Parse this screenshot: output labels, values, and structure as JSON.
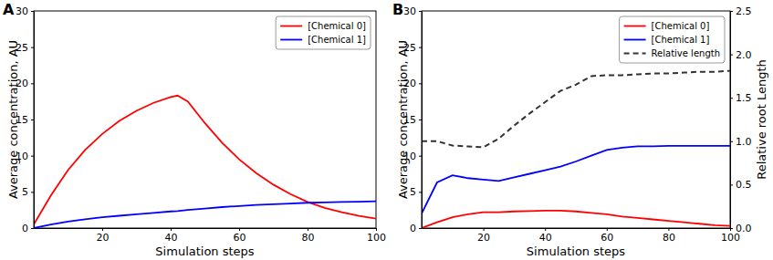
{
  "chart_data": [
    {
      "type": "line",
      "title": "A",
      "x_label": "Simulation steps",
      "y_label": "Average concentration, AU",
      "x": [
        0,
        5,
        10,
        15,
        20,
        25,
        30,
        35,
        40,
        42,
        45,
        50,
        55,
        60,
        65,
        70,
        75,
        80,
        85,
        90,
        95,
        100
      ],
      "series": [
        {
          "name": "[Chemical 0]",
          "color": "#ff0000",
          "values": [
            0.5,
            4.5,
            8,
            10.8,
            13,
            14.8,
            16.2,
            17.3,
            18.1,
            18.3,
            17.5,
            14.5,
            11.8,
            9.5,
            7.6,
            6,
            4.7,
            3.6,
            2.8,
            2.2,
            1.7,
            1.3
          ]
        },
        {
          "name": "[Chemical 1]",
          "color": "#0000ff",
          "values": [
            0,
            0.5,
            0.9,
            1.2,
            1.5,
            1.7,
            1.9,
            2.1,
            2.3,
            2.35,
            2.5,
            2.7,
            2.9,
            3.05,
            3.2,
            3.3,
            3.4,
            3.5,
            3.55,
            3.6,
            3.65,
            3.7
          ]
        }
      ],
      "xlim": [
        0,
        100
      ],
      "xticks": [
        20,
        40,
        60,
        80,
        100
      ],
      "ylim": [
        0,
        30
      ],
      "yticks": [
        0,
        5,
        10,
        15,
        20,
        25,
        30
      ],
      "grid": false,
      "legend": "upper right"
    },
    {
      "type": "line",
      "title": "B",
      "x_label": "Simulation steps",
      "y_label": "Average concentration, AU",
      "y2_label": "Relative root Length",
      "x": [
        0,
        5,
        10,
        15,
        20,
        25,
        30,
        35,
        40,
        45,
        50,
        55,
        60,
        65,
        70,
        75,
        80,
        85,
        90,
        95,
        100
      ],
      "series": [
        {
          "name": "[Chemical 0]",
          "color": "#ff0000",
          "values": [
            0,
            0.8,
            1.5,
            1.9,
            2.2,
            2.2,
            2.3,
            2.35,
            2.4,
            2.4,
            2.3,
            2.1,
            1.9,
            1.6,
            1.4,
            1.2,
            1.0,
            0.8,
            0.6,
            0.4,
            0.3
          ]
        },
        {
          "name": "[Chemical 1]",
          "color": "#0000ff",
          "values": [
            2,
            6.3,
            7.3,
            6.9,
            6.7,
            6.5,
            7,
            7.5,
            8,
            8.5,
            9.2,
            10,
            10.8,
            11.1,
            11.3,
            11.3,
            11.35,
            11.35,
            11.35,
            11.35,
            11.35
          ]
        },
        {
          "name": "Relative length",
          "color": "#333333",
          "line_style": "dashed",
          "axis": "y2",
          "values": [
            1.0,
            1.0,
            0.95,
            0.94,
            0.93,
            1.03,
            1.18,
            1.32,
            1.45,
            1.58,
            1.65,
            1.75,
            1.76,
            1.76,
            1.77,
            1.78,
            1.78,
            1.79,
            1.8,
            1.8,
            1.81
          ]
        }
      ],
      "xlim": [
        0,
        100
      ],
      "xticks": [
        20,
        40,
        60,
        80,
        100
      ],
      "ylim": [
        0,
        30
      ],
      "yticks": [
        0,
        5,
        10,
        15,
        20,
        25,
        30
      ],
      "y2lim": [
        0,
        2.5
      ],
      "y2ticks": [
        {
          "value": 0,
          "label": "0.0"
        },
        0.5,
        {
          "value": 1,
          "label": "1.0"
        },
        1.5,
        {
          "value": 2,
          "label": "2.0"
        },
        2.5
      ],
      "grid": false,
      "legend": "upper right"
    }
  ]
}
